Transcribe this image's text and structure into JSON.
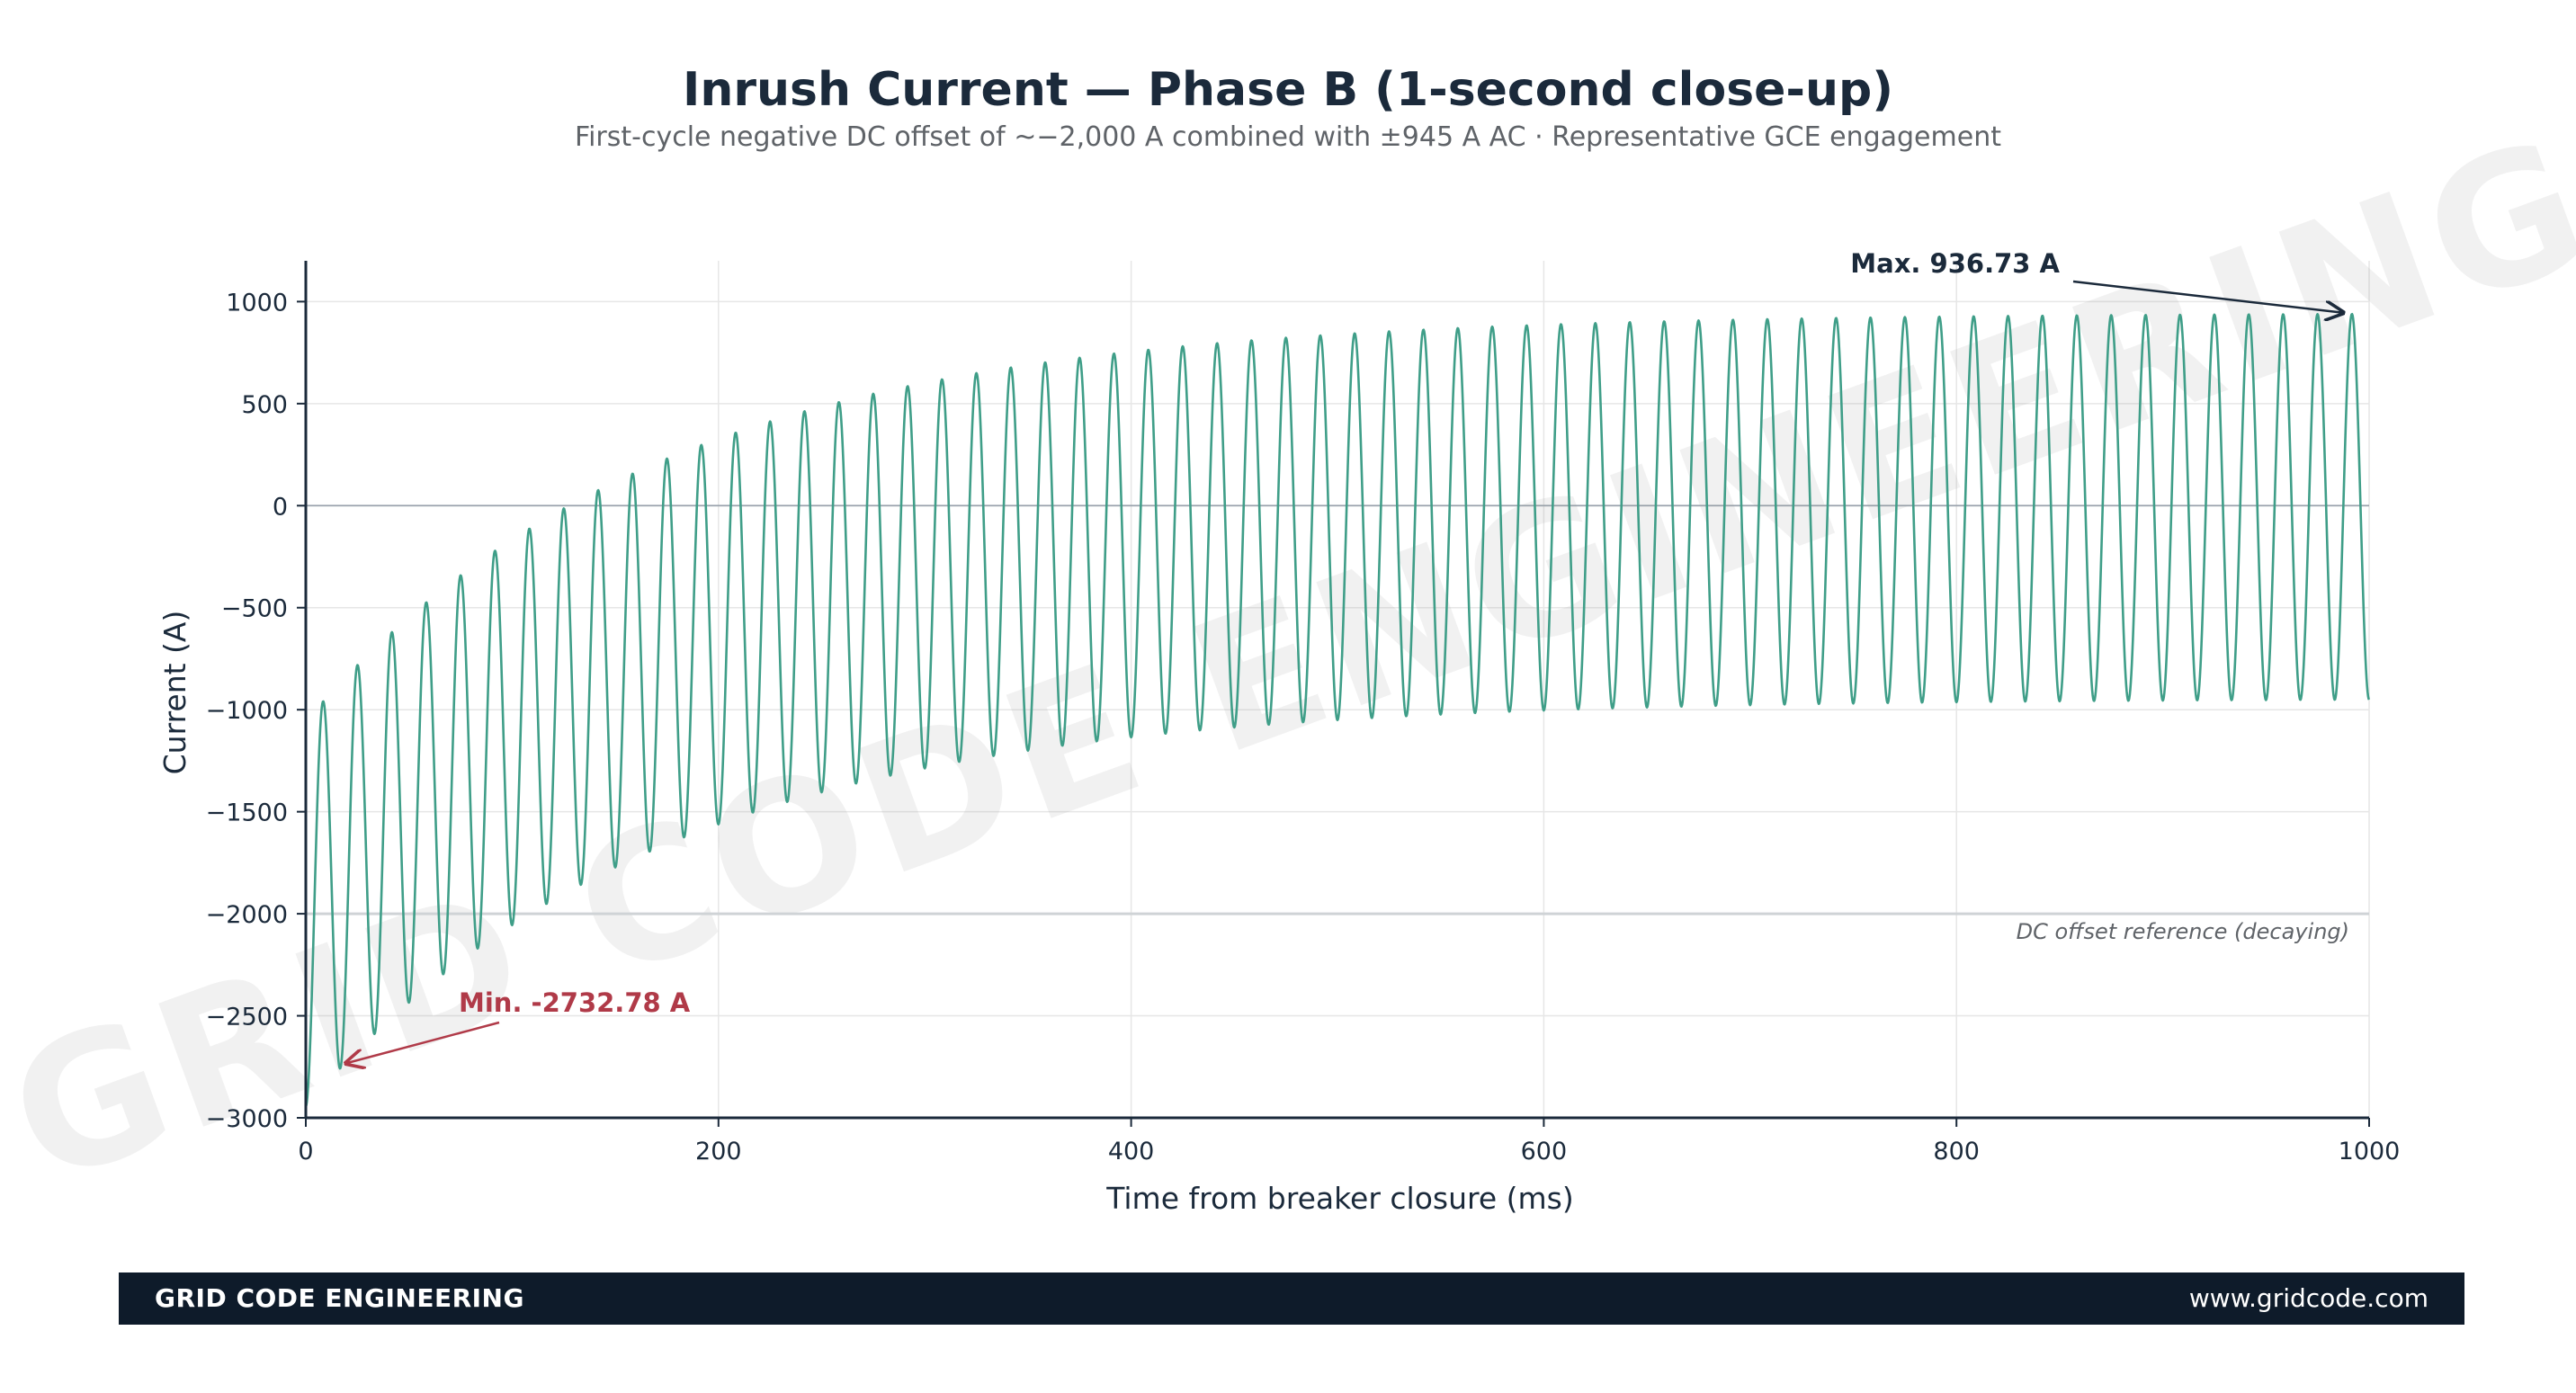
{
  "chart_data": {
    "type": "line",
    "title": "Inrush Current — Phase B (1-second close-up)",
    "subtitle": "First-cycle negative DC offset of ~−2,000 A combined with ±945 A AC  ·  Representative GCE engagement",
    "xlabel": "Time from breaker closure  (ms)",
    "ylabel": "Current  (A)",
    "xlim": [
      0,
      1000
    ],
    "ylim": [
      -3000,
      1200
    ],
    "xticks": [
      0,
      200,
      400,
      600,
      800,
      1000
    ],
    "yticks": [
      -3000,
      -2500,
      -2000,
      -1500,
      -1000,
      -500,
      0,
      500,
      1000
    ],
    "grid": true,
    "series": [
      {
        "color": "#3f9e88",
        "model": {
          "ac_amplitude_A": 945,
          "frequency_Hz": 60,
          "dc_offset_initial_A": -2000,
          "dc_time_constant_ms": 170,
          "samples": 4000
        }
      }
    ],
    "reference_line": {
      "y": -2000,
      "label": "DC offset reference (decaying)"
    },
    "annotations": [
      {
        "text": "Max. 936.73 A",
        "x": 990,
        "y": 936.73,
        "color": "#1b2a3b"
      },
      {
        "text": "Min. -2732.78 A",
        "x": 16,
        "y": -2732.78,
        "color": "#b03a48"
      }
    ],
    "watermark": "GRID CODE ENGINEERING"
  },
  "footer": {
    "brand": "GRID CODE ENGINEERING",
    "site": "www.gridcode.com"
  }
}
